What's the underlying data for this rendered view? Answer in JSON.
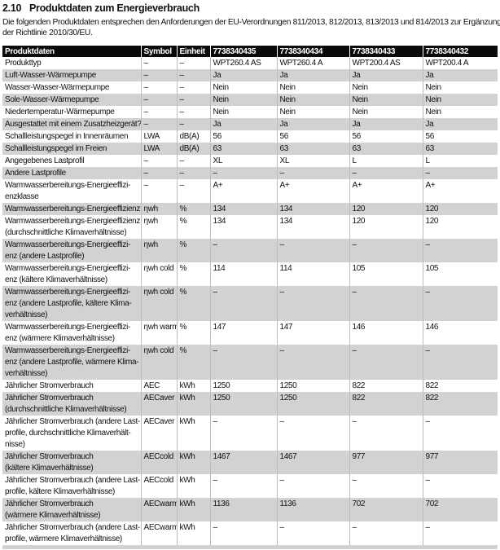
{
  "page": {
    "section_number": "2.10",
    "section_title": "Produktdaten zum Energieverbrauch",
    "intro_line1": "Die folgenden Produktdaten entsprechen den Anforderungen der EU-Verordnungen 811/2013, 812/2013, 813/2013 und 814/2013 zur Ergänzung",
    "intro_line2": "der Richtlinie 2010/30/EU."
  },
  "colors": {
    "header_bg": "#0a0a0a",
    "header_text": "#ffffff",
    "row_alt_bg": "#d2d2d2",
    "grid_line": "#bdbdbd",
    "body_text": "#111111"
  },
  "table": {
    "headers": [
      "Produktdaten",
      "Symbol",
      "Einheit",
      "7738340435",
      "7738340434",
      "7738340433",
      "7738340432"
    ],
    "rows": [
      {
        "label": "Produkttyp",
        "symbol": "–",
        "unit": "–",
        "values": [
          "WPT260.4 AS",
          "WPT260.4 A",
          "WPT200.4 AS",
          "WPT200.4 A"
        ]
      },
      {
        "label": "Luft-Wasser-Wärmepumpe",
        "symbol": "–",
        "unit": "–",
        "values": [
          "Ja",
          "Ja",
          "Ja",
          "Ja"
        ]
      },
      {
        "label": "Wasser-Wasser-Wärmepumpe",
        "symbol": "–",
        "unit": "–",
        "values": [
          "Nein",
          "Nein",
          "Nein",
          "Nein"
        ]
      },
      {
        "label": "Sole-Wasser-Wärmepumpe",
        "symbol": "–",
        "unit": "–",
        "values": [
          "Nein",
          "Nein",
          "Nein",
          "Nein"
        ]
      },
      {
        "label": "Niedertemperatur-Wärmepumpe",
        "symbol": "–",
        "unit": "–",
        "values": [
          "Nein",
          "Nein",
          "Nein",
          "Nein"
        ]
      },
      {
        "label": "Ausgestattet mit einem Zusatzheizgerät?",
        "symbol": "–",
        "unit": "–",
        "values": [
          "Ja",
          "Ja",
          "Ja",
          "Ja"
        ]
      },
      {
        "label": "Schallleistungspegel in Innenräumen",
        "symbol": "LWA",
        "unit": "dB(A)",
        "values": [
          "56",
          "56",
          "56",
          "56"
        ]
      },
      {
        "label": "Schallleistungspegel im Freien",
        "symbol": "LWA",
        "unit": "dB(A)",
        "values": [
          "63",
          "63",
          "63",
          "63"
        ]
      },
      {
        "label": "Angegebenes Lastprofil",
        "symbol": "–",
        "unit": "–",
        "values": [
          "XL",
          "XL",
          "L",
          "L"
        ]
      },
      {
        "label": "Andere Lastprofile",
        "symbol": "–",
        "unit": "–",
        "values": [
          "–",
          "–",
          "–",
          "–"
        ]
      },
      {
        "label": "Warmwasserbereitungs-Energieeffizi-\nenzklasse",
        "symbol": "–",
        "unit": "–",
        "values": [
          "A+",
          "A+",
          "A+",
          "A+"
        ]
      },
      {
        "label": "Warmwasserbereitungs-Energieeffizienz",
        "symbol": "ηwh",
        "unit": "%",
        "values": [
          "134",
          "134",
          "120",
          "120"
        ]
      },
      {
        "label": "Warmwasserbereitungs-Energieeffizienz\n(durchschnittliche Klimaverhältnisse)",
        "symbol": "ηwh",
        "unit": "%",
        "values": [
          "134",
          "134",
          "120",
          "120"
        ]
      },
      {
        "label": "Warmwasserbereitungs-Energieeffizi-\nenz (andere Lastprofile)",
        "symbol": "ηwh",
        "unit": "%",
        "values": [
          "–",
          "–",
          "–",
          "–"
        ]
      },
      {
        "label": "Warmwasserbereitungs-Energieeffizi-\nenz (kältere Klimaverhältnisse)",
        "symbol": "ηwh cold",
        "unit": "%",
        "values": [
          "114",
          "114",
          "105",
          "105"
        ]
      },
      {
        "label": "Warmwasserbereitungs-Energieeffizi-\nenz (andere Lastprofile, kältere Klima-\nverhältnisse)",
        "symbol": "ηwh cold",
        "unit": "%",
        "values": [
          "–",
          "–",
          "–",
          "–"
        ]
      },
      {
        "label": "Warmwasserbereitungs-Energieeffizi-\nenz (wärmere Klimaverhältnisse)",
        "symbol": "ηwh warm",
        "unit": "%",
        "values": [
          "147",
          "147",
          "146",
          "146"
        ]
      },
      {
        "label": "Warmwasserbereitungs-Energieeffizi-\nenz (andere Lastprofile, wärmere Klima-\nverhältnisse)",
        "symbol": "ηwh cold",
        "unit": "%",
        "values": [
          "–",
          "–",
          "–",
          "–"
        ]
      },
      {
        "label": "Jährlicher Stromverbrauch",
        "symbol": "AEC",
        "unit": "kWh",
        "values": [
          "1250",
          "1250",
          "822",
          "822"
        ]
      },
      {
        "label": "Jährlicher Stromverbrauch\n(durchschnittliche Klimaverhältnisse)",
        "symbol": "AECaver",
        "unit": "kWh",
        "values": [
          "1250",
          "1250",
          "822",
          "822"
        ]
      },
      {
        "label": "Jährlicher Stromverbrauch (andere Last-\nprofile, durchschnittliche Klimaverhält-\nnisse)",
        "symbol": "AECaver",
        "unit": "kWh",
        "values": [
          "–",
          "–",
          "–",
          "–"
        ]
      },
      {
        "label": "Jährlicher Stromverbrauch\n(kältere Klimaverhältnisse)",
        "symbol": "AECcold",
        "unit": "kWh",
        "values": [
          "1467",
          "1467",
          "977",
          "977"
        ]
      },
      {
        "label": "Jährlicher Stromverbrauch (andere Last-\nprofile, kältere Klimaverhältnisse)",
        "symbol": "AECcold",
        "unit": "kWh",
        "values": [
          "–",
          "–",
          "–",
          "–"
        ]
      },
      {
        "label": "Jährlicher Stromverbrauch\n(wärmere Klimaverhältnisse)",
        "symbol": "AECwarm",
        "unit": "kWh",
        "values": [
          "1136",
          "1136",
          "702",
          "702"
        ]
      },
      {
        "label": "Jährlicher Stromverbrauch (andere Last-\nprofile, wärmere Klimaverhältnisse)",
        "symbol": "AECwarm",
        "unit": "kWh",
        "values": [
          "–",
          "–",
          "–",
          "–"
        ]
      }
    ]
  }
}
